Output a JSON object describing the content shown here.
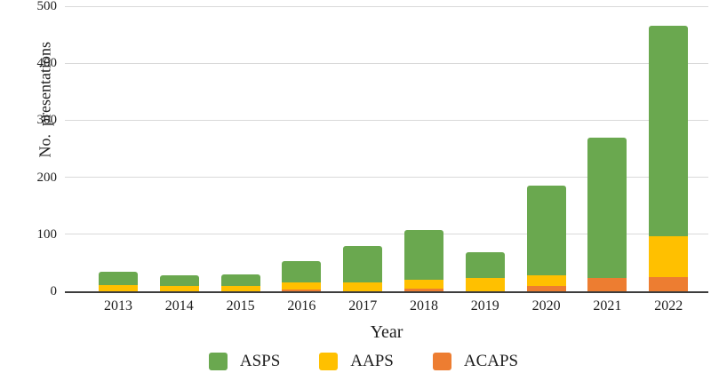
{
  "figure": {
    "background": "#ffffff",
    "text_color": "#1f1f1f",
    "gridline_color": "#d9d9d9",
    "axis_line_color": "#3d3d3d"
  },
  "chart_data": {
    "type": "bar",
    "stacked": true,
    "xlabel": "Year",
    "ylabel": "No.  presentations",
    "ylim": [
      0,
      500
    ],
    "yticks": [
      0,
      100,
      200,
      300,
      400,
      500
    ],
    "grid": true,
    "categories": [
      "2013",
      "2014",
      "2015",
      "2016",
      "2017",
      "2018",
      "2019",
      "2020",
      "2021",
      "2022"
    ],
    "series": [
      {
        "name": "ASPS",
        "color": "#6aa84f",
        "values": [
          24,
          18,
          21,
          38,
          65,
          87,
          45,
          157,
          247,
          368
        ]
      },
      {
        "name": "AAPS",
        "color": "#ffc000",
        "values": [
          11,
          10,
          9,
          12,
          15,
          16,
          23,
          18,
          0,
          72
        ]
      },
      {
        "name": "ACAPS",
        "color": "#ed7d31",
        "values": [
          0,
          0,
          0,
          3,
          0,
          4,
          0,
          10,
          23,
          25
        ]
      }
    ],
    "stack_order_bottom_to_top": [
      "ACAPS",
      "AAPS",
      "ASPS"
    ],
    "totals": [
      35,
      28,
      30,
      53,
      80,
      107,
      68,
      185,
      270,
      465
    ],
    "legend": {
      "position": "bottom",
      "entries": [
        "ASPS",
        "AAPS",
        "ACAPS"
      ]
    }
  }
}
